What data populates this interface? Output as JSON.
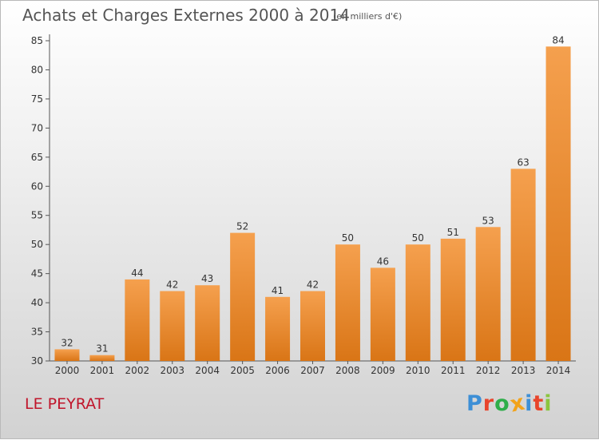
{
  "title": "Achats et Charges Externes 2000 à 2014",
  "subtitle": "(en milliers d'€)",
  "commune": "LE PEYRAT",
  "brand": {
    "letters": [
      "P",
      "r",
      "o",
      "x",
      "i",
      "t",
      "i"
    ],
    "colors": [
      "#3d8fd6",
      "#e8452c",
      "#2fae4a",
      "#f2a31b",
      "#3d8fd6",
      "#e8452c",
      "#8bc53f"
    ]
  },
  "colors": {
    "bar_light": "#f5a04e",
    "bar_dark": "#d97516",
    "commune": "#c0152b"
  },
  "chart_data": {
    "type": "bar",
    "categories": [
      "2000",
      "2001",
      "2002",
      "2003",
      "2004",
      "2005",
      "2006",
      "2007",
      "2008",
      "2009",
      "2010",
      "2011",
      "2012",
      "2013",
      "2014"
    ],
    "values": [
      32,
      31,
      44,
      42,
      43,
      52,
      41,
      42,
      50,
      46,
      50,
      51,
      53,
      63,
      84
    ],
    "ylim": [
      30,
      85
    ],
    "yticks": [
      30,
      35,
      40,
      45,
      50,
      55,
      60,
      65,
      70,
      75,
      80,
      85
    ],
    "grid": false,
    "data_labels": true
  }
}
